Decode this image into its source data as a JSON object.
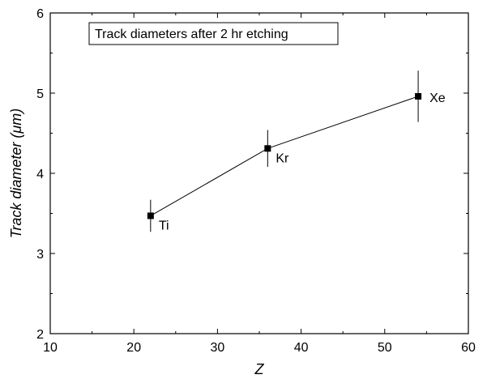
{
  "chart_data": {
    "type": "scatter",
    "xlabel": "Z",
    "ylabel": "Track diameter (μm)",
    "xlim": [
      10,
      60
    ],
    "ylim": [
      2,
      6
    ],
    "x_ticks": [
      10,
      20,
      30,
      40,
      50,
      60
    ],
    "y_ticks": [
      2,
      3,
      4,
      5,
      6
    ],
    "grid": false,
    "annotation": "Track diameters after 2 hr etching",
    "series": [
      {
        "points": [
          {
            "x": 22,
            "y": 3.47,
            "err": 0.2,
            "label": "Ti"
          },
          {
            "x": 36,
            "y": 4.31,
            "err": 0.23,
            "label": "Kr"
          },
          {
            "x": 54,
            "y": 4.96,
            "err": 0.32,
            "label": "Xe"
          }
        ]
      }
    ],
    "colors": {
      "marker": "#000000",
      "line": "#000000",
      "axis": "#000000"
    }
  }
}
